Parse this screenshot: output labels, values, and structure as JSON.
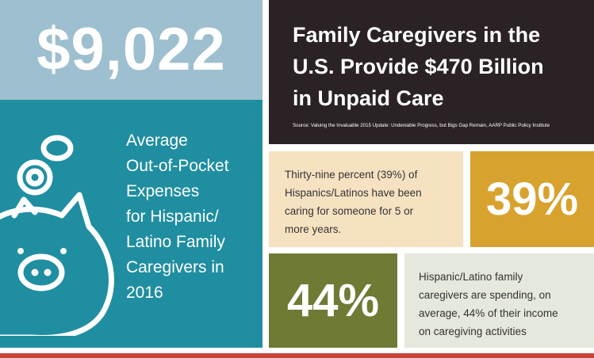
{
  "amount": {
    "value": "$9,022"
  },
  "expense_caption": {
    "lines": [
      "Average",
      "Out-of-Pocket",
      "Expenses",
      "for Hispanic/",
      "Latino Family",
      "Caregivers in",
      "2016"
    ]
  },
  "icons": {
    "piggy_bank": "piggy-bank-icon"
  },
  "headline": {
    "lines": [
      "Family Caregivers in the",
      "U.S. Provide $470 Billion",
      "in Unpaid Care"
    ],
    "source": "Source: Valuing the Invaluable 2015 Update: Undeniable Progress, but Bigs Gap Remain, AARP Public Policy Institute"
  },
  "stat_39": {
    "text_lines": [
      "Thirty-nine percent (39%) of",
      "Hispanics/Latinos have been",
      "caring for someone for 5 or",
      "more years."
    ],
    "value": "39%"
  },
  "stat_44": {
    "value": "44%",
    "text_lines": [
      "Hispanic/Latino family",
      "caregivers are spending, on",
      "average, 44% of their income",
      "on caregiving activities"
    ]
  },
  "colors": {
    "light_blue": "#9dbfcf",
    "teal": "#1f8ea0",
    "dark": "#2a2224",
    "cream": "#f6e2c1",
    "gold": "#d8a22e",
    "olive": "#6f7a35",
    "light_gray": "#e5e8dc",
    "red": "#c8453a"
  }
}
